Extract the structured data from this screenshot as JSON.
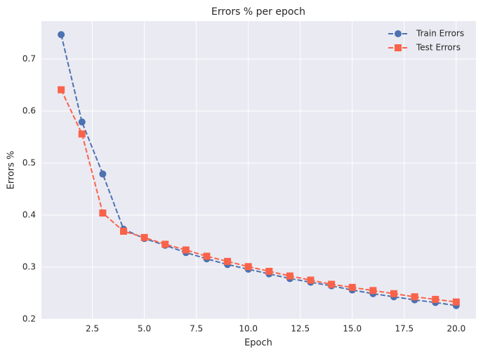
{
  "chart_data": {
    "type": "line",
    "title": "Errors % per epoch",
    "xlabel": "Epoch",
    "ylabel": "Errors %",
    "x": [
      1,
      2,
      3,
      4,
      5,
      6,
      7,
      8,
      9,
      10,
      11,
      12,
      13,
      14,
      15,
      16,
      17,
      18,
      19,
      20
    ],
    "series": [
      {
        "name": "Train Errors",
        "color": "#4c72b0",
        "marker": "circle",
        "values": [
          0.747,
          0.579,
          0.479,
          0.373,
          0.355,
          0.342,
          0.328,
          0.316,
          0.305,
          0.296,
          0.287,
          0.278,
          0.271,
          0.264,
          0.256,
          0.249,
          0.243,
          0.237,
          0.232,
          0.226
        ]
      },
      {
        "name": "Test Errors",
        "color": "#f9634a",
        "marker": "square",
        "values": [
          0.641,
          0.556,
          0.404,
          0.369,
          0.357,
          0.344,
          0.333,
          0.321,
          0.311,
          0.301,
          0.292,
          0.283,
          0.275,
          0.267,
          0.261,
          0.255,
          0.249,
          0.243,
          0.238,
          0.233
        ]
      }
    ],
    "xlim": [
      0.05,
      20.95
    ],
    "ylim": [
      0.2,
      0.773
    ],
    "xticks": [
      2.5,
      {
        "value": 5,
        "label": "5.0"
      },
      7.5,
      {
        "value": 10,
        "label": "10.0"
      },
      12.5,
      {
        "value": 15,
        "label": "15.0"
      },
      17.5,
      {
        "value": 20,
        "label": "20.0"
      }
    ],
    "yticks": [
      0.2,
      0.3,
      0.4,
      0.5,
      0.6,
      0.7
    ],
    "grid": true,
    "legend": "upper right"
  }
}
